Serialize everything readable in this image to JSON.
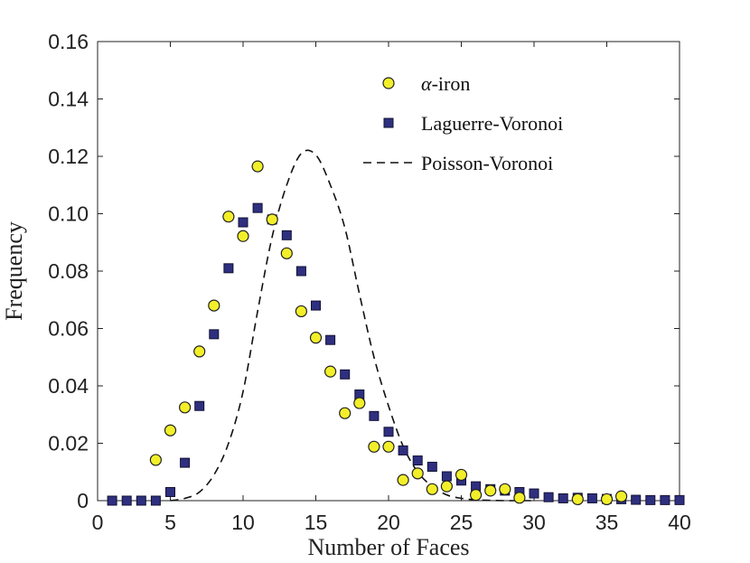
{
  "chart_data": {
    "type": "scatter",
    "xlabel": "Number of Faces",
    "ylabel": "Frequency",
    "xlim": [
      0,
      40
    ],
    "ylim": [
      0,
      0.16
    ],
    "xticks": [
      0,
      5,
      10,
      15,
      20,
      25,
      30,
      35,
      40
    ],
    "xtick_labels": [
      "0",
      "5",
      "10",
      "15",
      "20",
      "25",
      "30",
      "35",
      "40"
    ],
    "yticks": [
      0,
      0.02,
      0.04,
      0.06,
      0.08,
      0.1,
      0.12,
      0.14,
      0.16
    ],
    "ytick_labels": [
      "0",
      "0.02",
      "0.04",
      "0.06",
      "0.08",
      "0.10",
      "0.12",
      "0.14",
      "0.16"
    ],
    "grid": false,
    "legend_position": "top-right",
    "series": [
      {
        "name": "α-iron",
        "legend_prefix": "α",
        "legend_suffix": "-iron",
        "marker": "circle",
        "color": "#f2ef2a",
        "edge": "#222222",
        "x": [
          4,
          5,
          6,
          7,
          8,
          9,
          10,
          11,
          12,
          13,
          14,
          15,
          16,
          17,
          18,
          19,
          20,
          21,
          22,
          23,
          24,
          25,
          26,
          27,
          28,
          29,
          33,
          35,
          36
        ],
        "y": [
          0.0142,
          0.0245,
          0.0325,
          0.052,
          0.068,
          0.099,
          0.0922,
          0.1165,
          0.098,
          0.0862,
          0.066,
          0.0568,
          0.045,
          0.0305,
          0.034,
          0.0188,
          0.0188,
          0.0072,
          0.0095,
          0.004,
          0.005,
          0.009,
          0.002,
          0.0035,
          0.004,
          0.001,
          0.0005,
          0.0005,
          0.0015
        ]
      },
      {
        "name": "Laguerre-Voronoi",
        "marker": "square",
        "color": "#2f2f80",
        "edge": "#111133",
        "x": [
          1,
          2,
          3,
          4,
          5,
          6,
          7,
          8,
          9,
          10,
          11,
          12,
          13,
          14,
          15,
          16,
          17,
          18,
          19,
          20,
          21,
          22,
          23,
          24,
          25,
          26,
          27,
          28,
          29,
          30,
          31,
          32,
          33,
          34,
          35,
          36,
          37,
          38,
          39,
          40
        ],
        "y": [
          0,
          0,
          0,
          0,
          0.003,
          0.0132,
          0.033,
          0.058,
          0.081,
          0.097,
          0.102,
          0.098,
          0.0925,
          0.08,
          0.068,
          0.056,
          0.044,
          0.037,
          0.0295,
          0.024,
          0.0175,
          0.014,
          0.0118,
          0.0085,
          0.007,
          0.005,
          0.004,
          0.0035,
          0.003,
          0.0025,
          0.0012,
          0.0008,
          0.001,
          0.0008,
          0.0006,
          0.0005,
          0.0003,
          0.0002,
          0.0002,
          0.0002
        ]
      },
      {
        "name": "Poisson-Voronoi",
        "marker": "dashed-line",
        "color": "#111111",
        "x": [
          5,
          6,
          7,
          8,
          9,
          10,
          11,
          12,
          13,
          14,
          15,
          16,
          17,
          18,
          19,
          20,
          21,
          22,
          23,
          24,
          25,
          26,
          27,
          28,
          29,
          30
        ],
        "y": [
          0,
          0.0008,
          0.003,
          0.009,
          0.02,
          0.038,
          0.066,
          0.092,
          0.11,
          0.121,
          0.1205,
          0.11,
          0.095,
          0.072,
          0.05,
          0.033,
          0.019,
          0.01,
          0.005,
          0.002,
          0.0008,
          0.0003,
          0.0001,
          0,
          0,
          0
        ]
      }
    ]
  }
}
